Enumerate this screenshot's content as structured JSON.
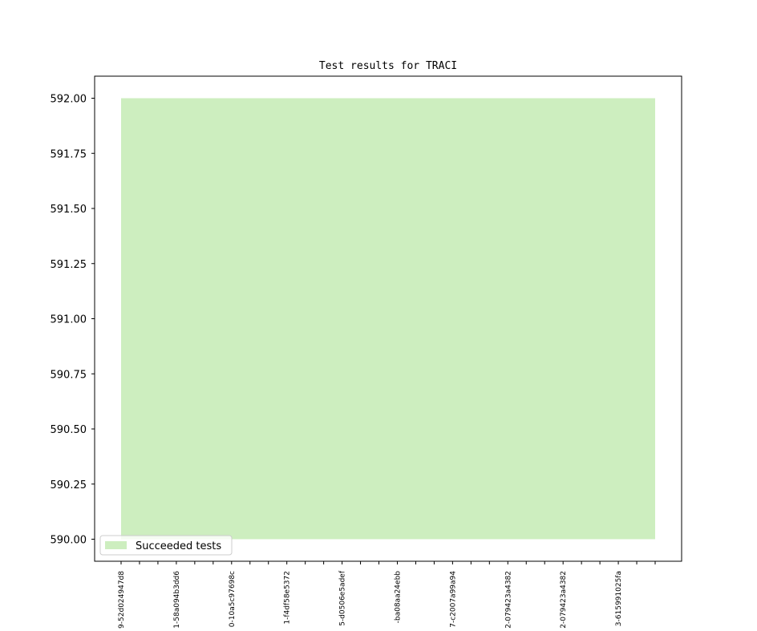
{
  "chart_data": {
    "type": "area",
    "title": "Test results for TRACI",
    "categories": [
      "9-52d024947d8",
      null,
      null,
      "1-58a094b3dd6",
      null,
      null,
      "0-10a5c97698c",
      null,
      null,
      "1-f4df58e5372",
      null,
      null,
      "5-d0506e5adef",
      null,
      null,
      "-ba08aa24ebb",
      null,
      null,
      "7-c2007a99a94",
      null,
      null,
      "2-079423a4382",
      null,
      null,
      "2-079423a4382",
      null,
      null,
      "3-615991025fa",
      null,
      null
    ],
    "series": [
      {
        "name": "Succeeded tests",
        "color": "#cdeebf",
        "values": [
          592,
          592,
          592,
          592,
          592,
          592,
          592,
          592,
          592,
          592,
          592,
          592,
          592,
          592,
          592,
          592,
          592,
          592,
          592,
          592,
          592,
          592,
          592,
          592,
          592,
          592,
          592,
          592,
          592,
          592
        ],
        "lower": [
          590,
          590,
          590,
          590,
          590,
          590,
          590,
          590,
          590,
          590,
          590,
          590,
          590,
          590,
          590,
          590,
          590,
          590,
          590,
          590,
          590,
          590,
          590,
          590,
          590,
          590,
          590,
          590,
          590,
          590
        ]
      }
    ],
    "ylim": [
      589.9,
      592.1
    ],
    "yticks": [
      {
        "value": 590,
        "label": "590.00"
      },
      {
        "value": 590.25,
        "label": "590.25"
      },
      {
        "value": 590.5,
        "label": "590.50"
      },
      {
        "value": 590.75,
        "label": "590.75"
      },
      {
        "value": 591,
        "label": "591.00"
      },
      {
        "value": 591.25,
        "label": "591.25"
      },
      {
        "value": 591.5,
        "label": "591.50"
      },
      {
        "value": 591.75,
        "label": "591.75"
      },
      {
        "value": 592,
        "label": "592.00"
      }
    ],
    "legend": "lower left"
  }
}
